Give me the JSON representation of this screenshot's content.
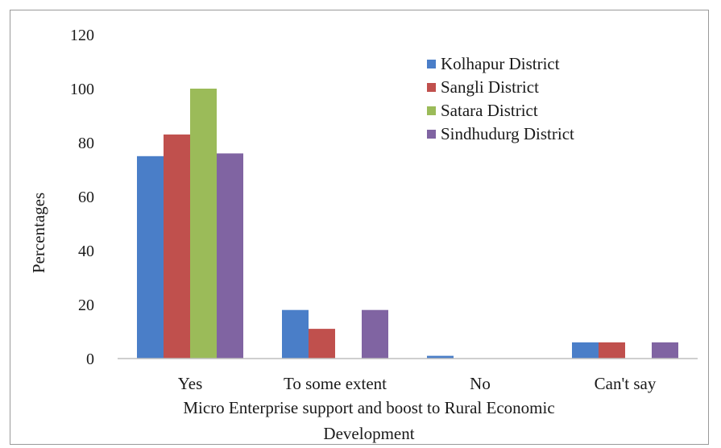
{
  "chart_data": {
    "type": "bar",
    "categories": [
      "Yes",
      "To some extent",
      "No",
      "Can't say"
    ],
    "series": [
      {
        "name": "Kolhapur District",
        "values": [
          75,
          18,
          1,
          6
        ],
        "color": "#4a7ec8"
      },
      {
        "name": "Sangli District",
        "values": [
          83,
          11,
          0,
          6
        ],
        "color": "#c0504d"
      },
      {
        "name": "Satara District",
        "values": [
          100,
          0,
          0,
          0
        ],
        "color": "#9bbb59"
      },
      {
        "name": "Sindhudurg District",
        "values": [
          76,
          18,
          0,
          6
        ],
        "color": "#8064a2"
      }
    ],
    "ylabel": "Percentages",
    "xlabel_lines": [
      "Micro Enterprise support and boost to Rural Economic",
      "Development"
    ],
    "ylim": [
      0,
      120
    ],
    "yticks": [
      0,
      20,
      40,
      60,
      80,
      100,
      120
    ],
    "grid": false,
    "legend_position": "top-right"
  }
}
